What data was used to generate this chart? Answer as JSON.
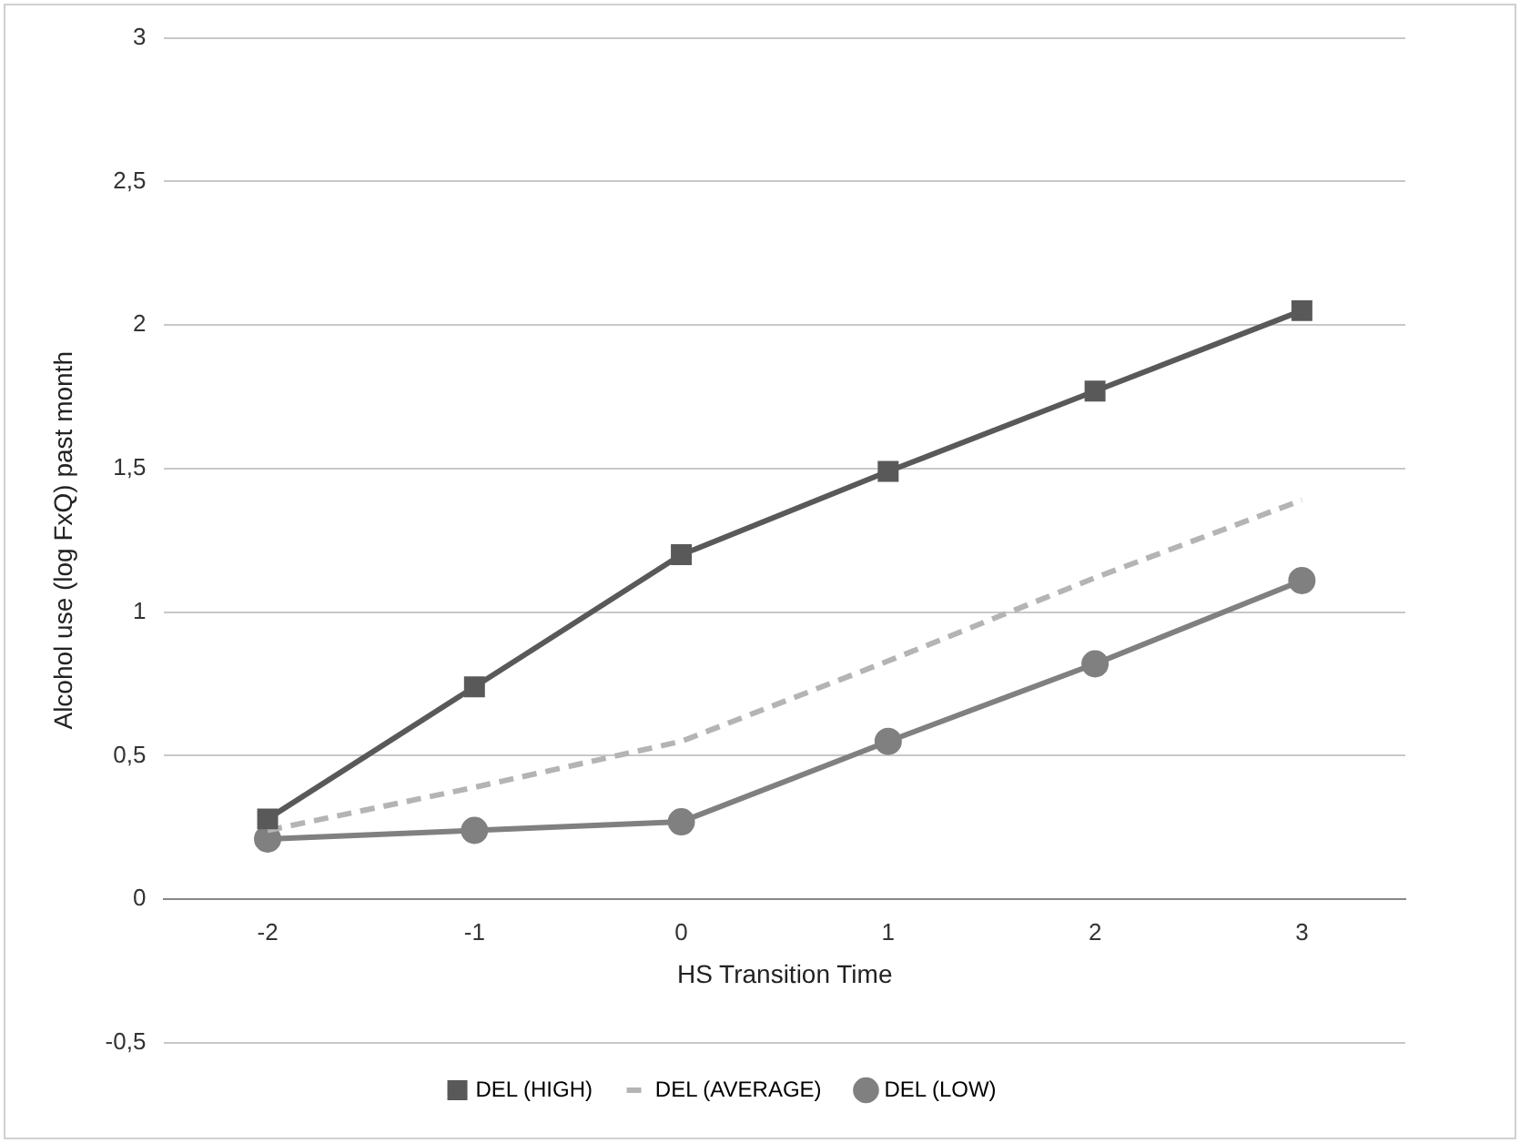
{
  "chart_data": {
    "type": "line",
    "xlabel": "HS Transition Time",
    "ylabel": "Alcohol use (log FxQ) past month",
    "categories": [
      "-2",
      "-1",
      "0",
      "1",
      "2",
      "3"
    ],
    "series": [
      {
        "name": "DEL (HIGH)",
        "color": "#595959",
        "marker": "square",
        "line_style": "solid",
        "values": [
          0.28,
          0.74,
          1.2,
          1.49,
          1.77,
          2.05
        ]
      },
      {
        "name": "DEL (AVERAGE)",
        "color": "#b4b4b4",
        "marker": "none",
        "line_style": "dashed",
        "values": [
          0.24,
          0.39,
          0.55,
          0.83,
          1.12,
          1.39
        ]
      },
      {
        "name": "DEL (LOW)",
        "color": "#808080",
        "marker": "circle",
        "line_style": "solid",
        "values": [
          0.21,
          0.24,
          0.27,
          0.55,
          0.82,
          1.11
        ]
      }
    ],
    "ylim": [
      -0.5,
      3
    ],
    "yticks": [
      {
        "value": -0.5,
        "label": "-0,5"
      },
      0,
      {
        "value": 0.5,
        "label": "0,5"
      },
      1,
      {
        "value": 1.5,
        "label": "1,5"
      },
      2,
      {
        "value": 2.5,
        "label": "2,5"
      },
      3
    ],
    "grid": "y",
    "legend": "bottom"
  }
}
